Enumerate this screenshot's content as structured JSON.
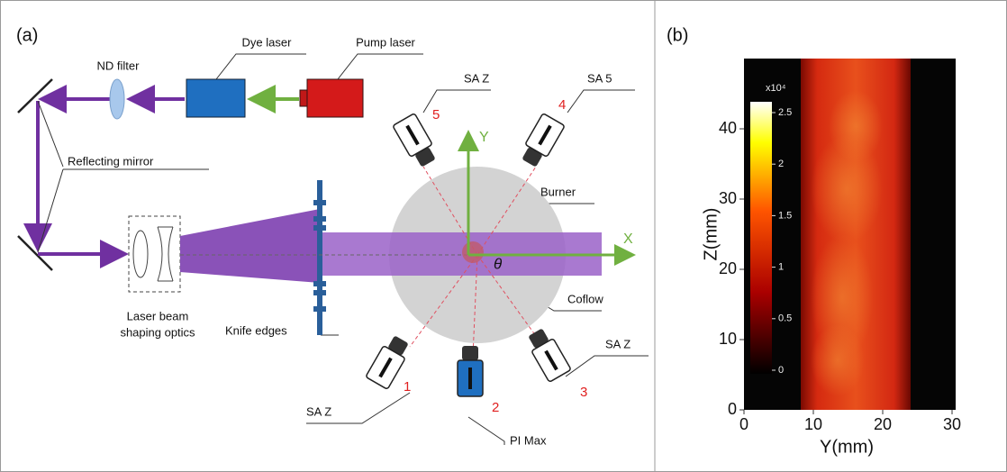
{
  "panel_a": {
    "label": "(a)",
    "components": {
      "dye_laser": "Dye laser",
      "pump_laser": "Pump laser",
      "nd_filter": "ND filter",
      "reflecting_mirror": "Reflecting mirror",
      "beam_optics": [
        "Laser beam",
        "shaping optics"
      ],
      "knife_edges": "Knife edges",
      "burner": "Burner",
      "coflow": "Coflow",
      "x_axis": "X",
      "y_axis": "Y",
      "angle": "θ"
    },
    "cameras": [
      {
        "number": "1",
        "label": "SA Z"
      },
      {
        "number": "2",
        "label": "PI Max"
      },
      {
        "number": "3",
        "label": "SA Z"
      },
      {
        "number": "4",
        "label": "SA 5"
      },
      {
        "number": "5",
        "label": "SA Z"
      }
    ]
  },
  "panel_b": {
    "label": "(b)",
    "x_label": "Y(mm)",
    "y_label": "Z(mm)",
    "xlim": [
      0,
      30
    ],
    "ylim": [
      0,
      50
    ],
    "xticks": [
      0,
      10,
      20,
      30
    ],
    "yticks": [
      0,
      10,
      20,
      30,
      40
    ],
    "colorbar": {
      "multiplier": "x10⁴",
      "lim": [
        0,
        2.5
      ],
      "ticks": [
        0,
        0.5,
        1,
        1.5,
        2,
        2.5
      ]
    }
  }
}
